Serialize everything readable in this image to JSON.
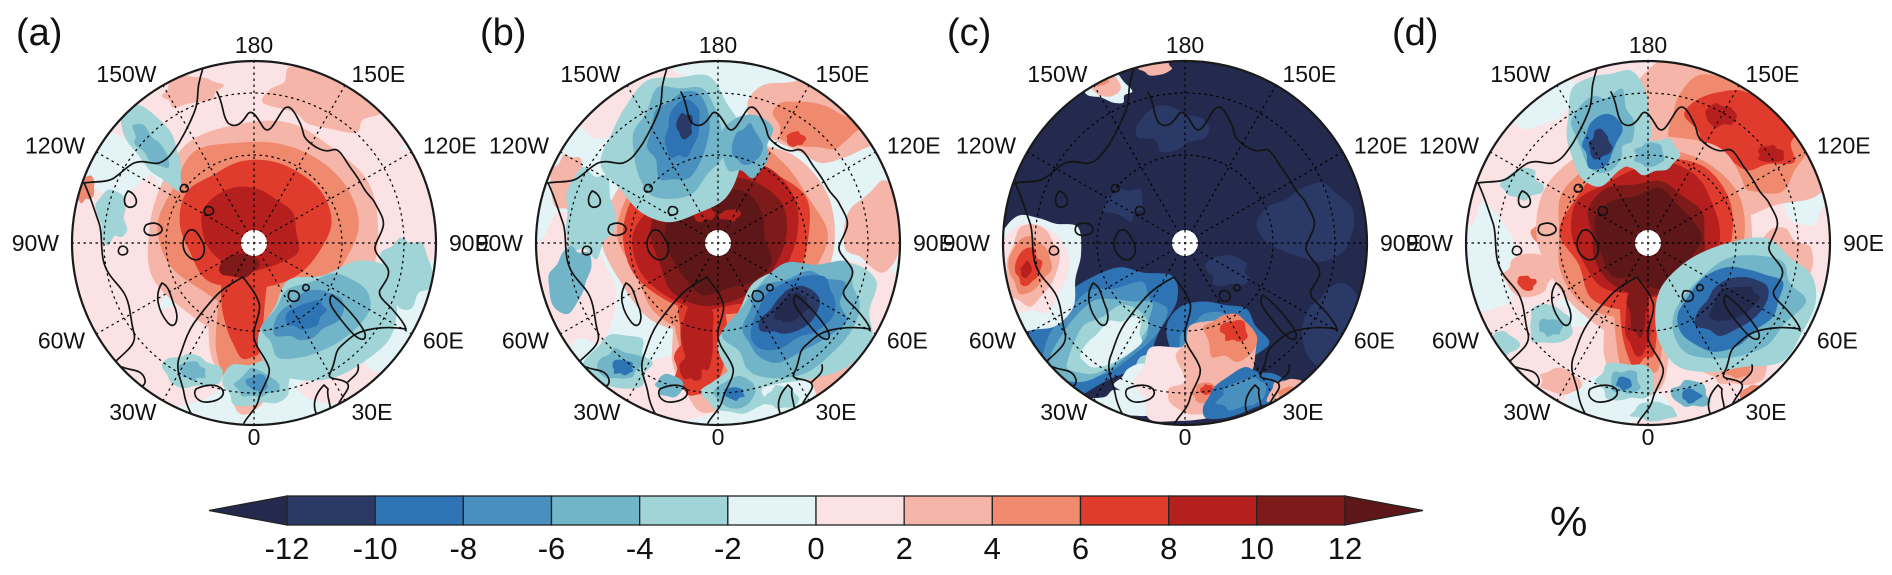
{
  "figure": {
    "type": "four-panel polar stereographic anomaly maps with shared color scale",
    "panels": [
      {
        "id": "a",
        "label": "(a)"
      },
      {
        "id": "b",
        "label": "(b)"
      },
      {
        "id": "c",
        "label": "(c)"
      },
      {
        "id": "d",
        "label": "(d)"
      }
    ],
    "unit_label": "%"
  },
  "map": {
    "meridians": [
      {
        "label": "180",
        "deg": 0
      },
      {
        "label": "150E",
        "deg": 30
      },
      {
        "label": "120E",
        "deg": 60
      },
      {
        "label": "90E",
        "deg": 90
      },
      {
        "label": "60E",
        "deg": 120
      },
      {
        "label": "30E",
        "deg": 150
      },
      {
        "label": "0",
        "deg": 180
      },
      {
        "label": "30W",
        "deg": 210
      },
      {
        "label": "60W",
        "deg": 240
      },
      {
        "label": "90W",
        "deg": 270
      },
      {
        "label": "120W",
        "deg": 300
      },
      {
        "label": "150W",
        "deg": 330
      }
    ]
  },
  "colorbar": {
    "ticks": [
      "-12",
      "-10",
      "-8",
      "-6",
      "-4",
      "-2",
      "0",
      "2",
      "4",
      "6",
      "8",
      "10",
      "12"
    ],
    "segment_colors": [
      "#2b3966",
      "#2e74b5",
      "#4a90bf",
      "#72b5c8",
      "#a0d4d6",
      "#e4f3f5",
      "#fbe2e5",
      "#f5b5a8",
      "#f08a6e",
      "#e03c2d",
      "#b5201e",
      "#7e1a1a"
    ],
    "left_arrow_color": "#232a4d",
    "right_arrow_color": "#5e1718",
    "unit": "%"
  },
  "chart_data": {
    "type": "heatmap",
    "variant": "filled-contour north-polar stereographic maps, 4 panels, shared diverging color scale",
    "panel_labels": [
      "(a)",
      "(b)",
      "(c)",
      "(d)"
    ],
    "meridian_labels": [
      "180",
      "150W",
      "120W",
      "90W",
      "60W",
      "30W",
      "0",
      "30E",
      "60E",
      "90E",
      "120E",
      "150E"
    ],
    "colorbar": {
      "levels": [
        -12,
        -10,
        -8,
        -6,
        -4,
        -2,
        0,
        2,
        4,
        6,
        8,
        10,
        12
      ],
      "unit": "%",
      "extend": "both"
    },
    "panel_summaries": [
      "Positive anomalies up to ~10% centered on the Arctic Ocean near the pole; negative anomalies to ~-8% over the Barents/Kara Seas; weak (within ±2%) anomalies elsewhere",
      "Strong positive anomalies exceeding 12% centered on the pole with a tongue along the Greenland meridian; strong negative anomalies below -12% over the Kara Sea sector and along the Chukchi/Siberian coast",
      "Negative anomalies below -12% covering nearly the entire Arctic basin; positive anomalies up to ~8% near east Greenland and over northern Europe; light transition band over Canada and the North Atlantic",
      "Strong positive anomalies exceeding 12% over the central Arctic plus 4-8% over eastern Siberia; strong negative anomalies below -12% over the Barents-Kara Seas; scattered weak anomalies elsewhere"
    ]
  }
}
